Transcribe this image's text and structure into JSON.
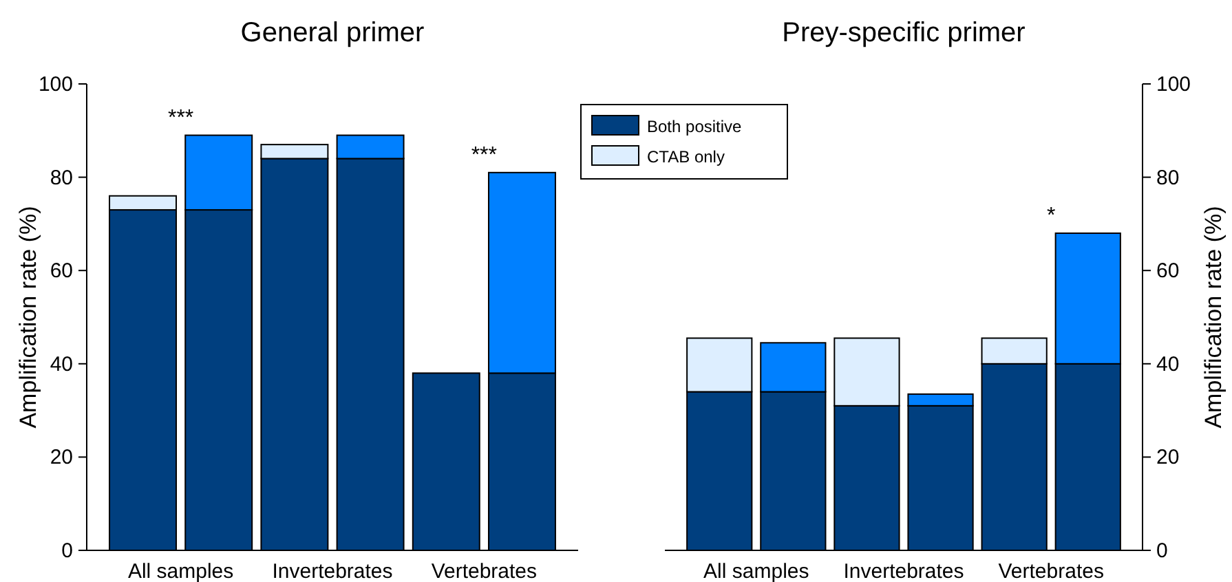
{
  "chart_data": [
    {
      "type": "bar",
      "title": "General primer",
      "ylabel": "Amplification rate (%)",
      "categories": [
        "All samples",
        null,
        "Invertebrates",
        null,
        "Vertebrates",
        null
      ],
      "stacked": true,
      "series": [
        {
          "name": "Both positive",
          "color": "#003f7f",
          "values": [
            73,
            73,
            84,
            84,
            38,
            38
          ]
        },
        {
          "name": "CTAB only",
          "color": "#ddeeff",
          "values": [
            3,
            null,
            3,
            null,
            0,
            null
          ]
        },
        {
          "color": "#0080ff",
          "values": [
            null,
            16,
            null,
            5,
            null,
            43
          ]
        }
      ],
      "ylim": [
        0,
        100
      ],
      "yticks": [
        0,
        20,
        40,
        60,
        80,
        100
      ],
      "legend": "top right",
      "annotations": [
        "***",
        "***"
      ]
    },
    {
      "type": "bar",
      "title": "Prey-specific primer",
      "ylabel": "Amplification rate (%)",
      "categories": [
        "All samples",
        null,
        "Invertebrates",
        null,
        "Vertebrates",
        null
      ],
      "stacked": true,
      "series": [
        {
          "color": "#003f7f",
          "values": [
            34,
            34,
            31,
            31,
            40,
            40
          ]
        },
        {
          "color": "#ddeeff",
          "values": [
            11.5,
            null,
            14.5,
            null,
            5.5,
            null
          ]
        },
        {
          "color": "#0080ff",
          "values": [
            null,
            10.5,
            null,
            2.5,
            null,
            28
          ]
        }
      ],
      "ylim": [
        0,
        100
      ],
      "yticks": [
        0,
        20,
        40,
        60,
        80,
        100
      ],
      "annotations": [
        "*"
      ]
    }
  ]
}
